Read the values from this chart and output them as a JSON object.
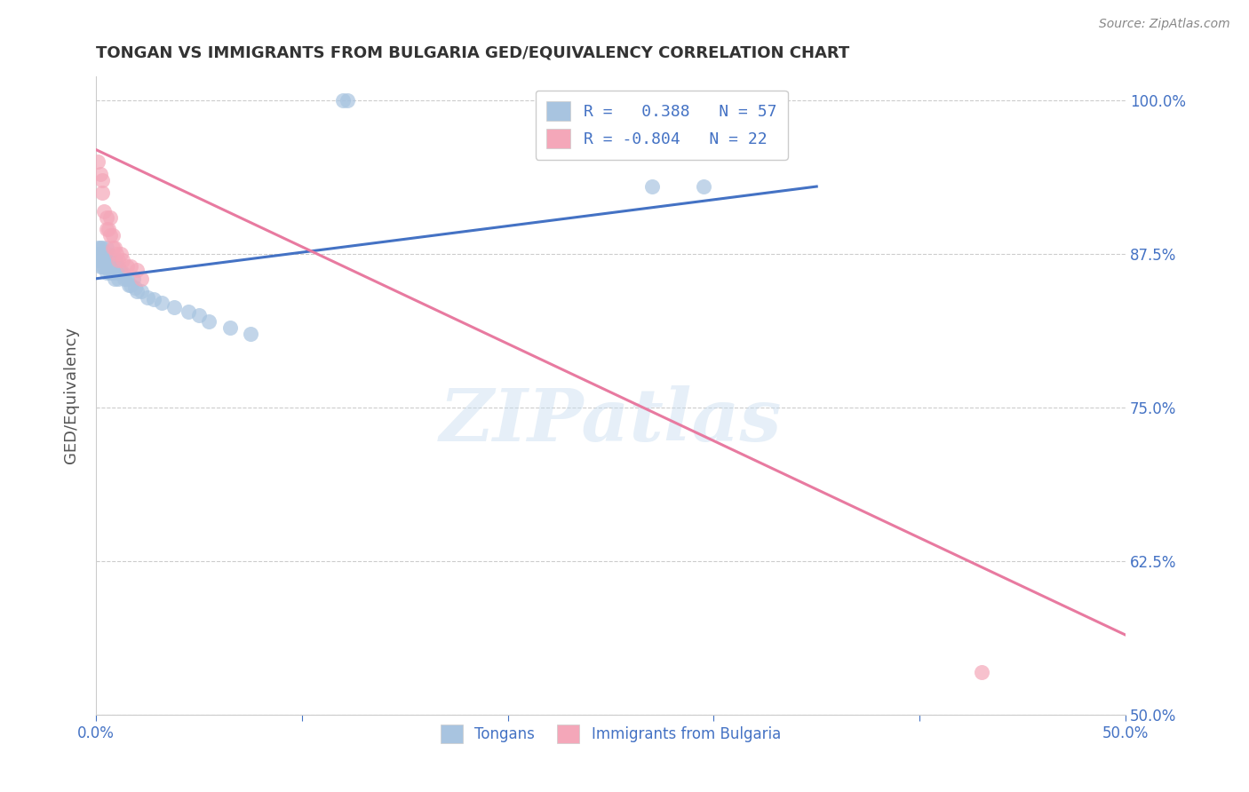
{
  "title": "TONGAN VS IMMIGRANTS FROM BULGARIA GED/EQUIVALENCY CORRELATION CHART",
  "source": "Source: ZipAtlas.com",
  "ylabel": "GED/Equivalency",
  "xlim": [
    0.0,
    0.5
  ],
  "ylim": [
    0.5,
    1.02
  ],
  "xticks": [
    0.0,
    0.1,
    0.2,
    0.3,
    0.4,
    0.5
  ],
  "xticklabels": [
    "0.0%",
    "",
    "",
    "",
    "",
    "50.0%"
  ],
  "yticks": [
    0.5,
    0.625,
    0.75,
    0.875,
    1.0
  ],
  "yticklabels": [
    "50.0%",
    "62.5%",
    "75.0%",
    "87.5%",
    "100.0%"
  ],
  "blue_color": "#a8c4e0",
  "pink_color": "#f4a7b9",
  "blue_line_color": "#4472c4",
  "pink_line_color": "#e87aa0",
  "watermark": "ZIPatlas",
  "blue_points_x": [
    0.001,
    0.001,
    0.001,
    0.002,
    0.002,
    0.002,
    0.002,
    0.003,
    0.003,
    0.003,
    0.003,
    0.004,
    0.004,
    0.004,
    0.005,
    0.005,
    0.005,
    0.005,
    0.006,
    0.006,
    0.006,
    0.007,
    0.007,
    0.007,
    0.008,
    0.008,
    0.008,
    0.009,
    0.009,
    0.009,
    0.01,
    0.01,
    0.011,
    0.011,
    0.012,
    0.013,
    0.014,
    0.015,
    0.016,
    0.017,
    0.018,
    0.019,
    0.02,
    0.022,
    0.025,
    0.028,
    0.032,
    0.038,
    0.045,
    0.05,
    0.055,
    0.065,
    0.075,
    0.12,
    0.122,
    0.27,
    0.295
  ],
  "blue_points_y": [
    0.875,
    0.88,
    0.87,
    0.88,
    0.875,
    0.87,
    0.865,
    0.875,
    0.87,
    0.865,
    0.88,
    0.87,
    0.875,
    0.865,
    0.875,
    0.87,
    0.86,
    0.88,
    0.87,
    0.865,
    0.875,
    0.87,
    0.865,
    0.86,
    0.87,
    0.865,
    0.86,
    0.87,
    0.865,
    0.855,
    0.865,
    0.86,
    0.865,
    0.855,
    0.86,
    0.86,
    0.855,
    0.855,
    0.85,
    0.85,
    0.855,
    0.848,
    0.845,
    0.845,
    0.84,
    0.838,
    0.835,
    0.832,
    0.828,
    0.825,
    0.82,
    0.815,
    0.81,
    1.0,
    1.0,
    0.93,
    0.93
  ],
  "pink_points_x": [
    0.001,
    0.002,
    0.003,
    0.003,
    0.004,
    0.005,
    0.005,
    0.006,
    0.007,
    0.007,
    0.008,
    0.008,
    0.009,
    0.01,
    0.011,
    0.012,
    0.013,
    0.015,
    0.017,
    0.02,
    0.022,
    0.43
  ],
  "pink_points_y": [
    0.95,
    0.94,
    0.935,
    0.925,
    0.91,
    0.905,
    0.895,
    0.895,
    0.89,
    0.905,
    0.89,
    0.88,
    0.88,
    0.875,
    0.87,
    0.875,
    0.87,
    0.865,
    0.865,
    0.862,
    0.855,
    0.535
  ],
  "blue_trendline_x": [
    0.0,
    0.35
  ],
  "blue_trendline_y": [
    0.855,
    0.93
  ],
  "pink_trendline_x": [
    0.0,
    0.5
  ],
  "pink_trendline_y": [
    0.96,
    0.565
  ],
  "background_color": "#ffffff",
  "grid_color": "#cccccc",
  "title_color": "#333333",
  "axis_color": "#4472c4"
}
